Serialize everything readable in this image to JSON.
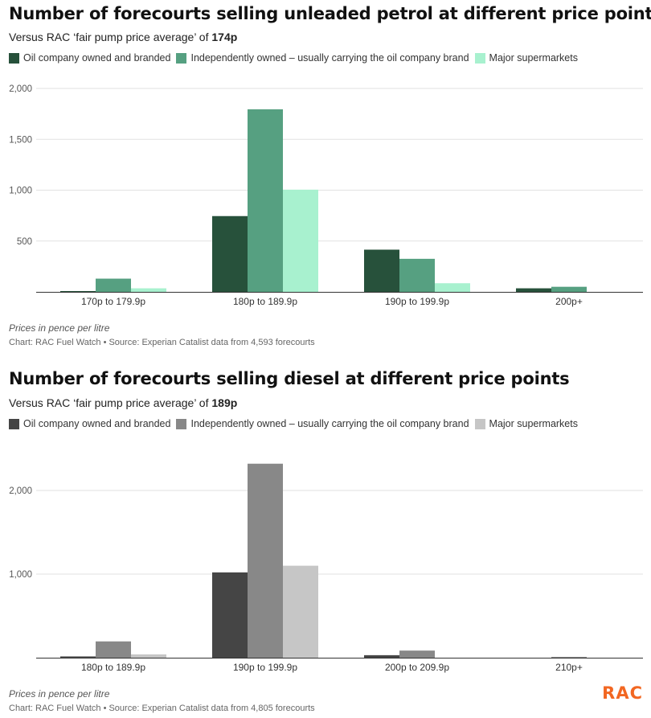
{
  "charts": [
    {
      "title": "Number of forecourts selling unleaded petrol at different price points",
      "subtitle_text": "Versus RAC ‘fair pump price average’ of ",
      "subtitle_value": "174p",
      "note": "Prices in pence per litre",
      "source": "Chart: RAC Fuel Watch • Source: Experian Catalist data from 4,593 forecourts"
    },
    {
      "title": "Number of forecourts selling diesel at different price points",
      "subtitle_text": "Versus RAC ‘fair pump price average’ of ",
      "subtitle_value": "189p",
      "note": "Prices in pence per litre",
      "source": "Chart: RAC Fuel Watch • Source: Experian Catalist data from 4,805 forecourts"
    }
  ],
  "logo_text": "RAC",
  "chart_data": [
    {
      "type": "bar",
      "title": "Number of forecourts selling unleaded petrol at different price points",
      "categories": [
        "170p to 179.9p",
        "180p to 189.9p",
        "190p to 199.9p",
        "200p+"
      ],
      "series": [
        {
          "name": "Oil company owned and branded",
          "color": "#27513b",
          "values": [
            8,
            745,
            415,
            35
          ]
        },
        {
          "name": "Independently owned – usually carrying the oil company brand",
          "color": "#56a081",
          "values": [
            130,
            1795,
            325,
            50
          ]
        },
        {
          "name": "Major supermarkets",
          "color": "#a8f1cf",
          "values": [
            35,
            1005,
            85,
            0
          ]
        }
      ],
      "yticks": [
        500,
        1000,
        1500,
        2000
      ],
      "ytick_labels": [
        "500",
        "1,000",
        "1,500",
        "2,000"
      ],
      "ylim": [
        0,
        2000
      ],
      "grid": true,
      "legend_position": "top-left"
    },
    {
      "type": "bar",
      "title": "Number of forecourts selling diesel at different price points",
      "categories": [
        "180p to 189.9p",
        "190p to 199.9p",
        "200p to 209.9p",
        "210p+"
      ],
      "series": [
        {
          "name": "Oil company owned and branded",
          "color": "#454545",
          "values": [
            15,
            1020,
            30,
            0
          ]
        },
        {
          "name": "Independently owned – usually carrying the oil company brand",
          "color": "#888888",
          "values": [
            195,
            2320,
            85,
            10
          ]
        },
        {
          "name": "Major supermarkets",
          "color": "#c6c6c6",
          "values": [
            40,
            1100,
            0,
            0
          ]
        }
      ],
      "yticks": [
        1000,
        2000
      ],
      "ytick_labels": [
        "1,000",
        "2,000"
      ],
      "ylim": [
        0,
        2500
      ],
      "grid": true,
      "legend_position": "top-left"
    }
  ]
}
